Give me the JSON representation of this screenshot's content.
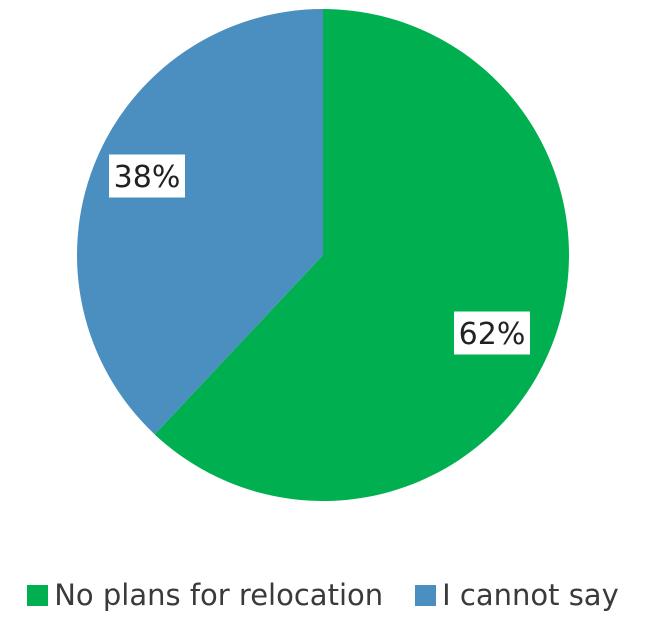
{
  "chart_data": {
    "type": "pie",
    "start_angle_deg": 0,
    "direction": "clockwise",
    "slices": [
      {
        "name": "No plans for relocation",
        "value": 62,
        "label": "62%",
        "color": "#00b050"
      },
      {
        "name": "I cannot say",
        "value": 38,
        "label": "38%",
        "color": "#4a8fc0"
      }
    ],
    "legend_position": "bottom"
  }
}
